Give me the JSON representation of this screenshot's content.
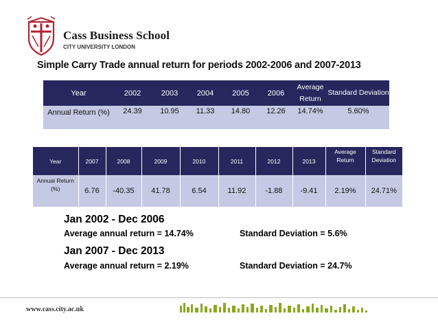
{
  "header": {
    "school_name": "Cass Business School",
    "school_subtitle": "CITY UNIVERSITY LONDON"
  },
  "title": "Simple Carry Trade annual return for periods 2002-2006 and 2007-2013",
  "table1": {
    "row_label_header": "Year",
    "years": [
      "2002",
      "2003",
      "2004",
      "2005",
      "2006"
    ],
    "avg_header": "Average Return",
    "sd_header": "Standard Deviation",
    "row_label": "Annual Return (%)",
    "values": [
      "24.39",
      "10.95",
      "11.33",
      "14.80",
      "12.26"
    ],
    "avg_value": "14.74%",
    "sd_value": "5.60%"
  },
  "table2": {
    "row_label_header": "Year",
    "years": [
      "2007",
      "2008",
      "2009",
      "2010",
      "2011",
      "2012",
      "2013"
    ],
    "avg_header": "Average Return",
    "sd_header": "Standard Deviation",
    "row_label": "Annual Return (%)",
    "values": [
      "6.76",
      "-40.35",
      "41.78",
      "6.54",
      "11.92",
      "-1.88",
      "-9.41"
    ],
    "avg_value": "2.19%",
    "sd_value": "24.71%"
  },
  "summary": {
    "period1": "Jan 2002 - Dec 2006",
    "period1_avg": "Average annual return = 14.74%",
    "period1_sd": "Standard Deviation = 5.6%",
    "period2": "Jan 2007 - Dec 2013",
    "period2_avg": "Average annual return = 2.19%",
    "period2_sd": "Standard Deviation = 24.7%"
  },
  "footer": {
    "url": "www.cass.city.ac.uk"
  },
  "colors": {
    "header_bg": "#27275e",
    "row_bg": "#c5c9e3",
    "logo_red": "#b22234"
  }
}
